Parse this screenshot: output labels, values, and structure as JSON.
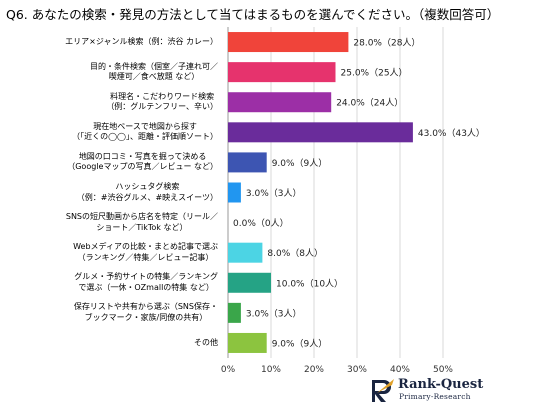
{
  "title": "Q6. あなたの検索・発見の方法として当てはまるものを選んでください。（複数回答可）",
  "chart_data": {
    "type": "bar",
    "orientation": "horizontal",
    "categories": [
      "エリア×ジャンル検索（例：渋谷 カレー）",
      "目的・条件検索（個室／子連れ可／\n喫煙可／食べ放題 など）",
      "料理名・こだわりワード検索\n（例：グルテンフリー、辛い）",
      "現在地ベースで地図から探す\n（「近くの◯◯」、距離・評価順ソート）",
      "地図の口コミ・写真を掘って決める\n（Googleマップの写真／レビュー など）",
      "ハッシュタグ検索\n（例：#渋谷グルメ、#映えスイーツ）",
      "SNSの短尺動画から店名を特定（リール／\nショート／TikTok など）",
      "Webメディアの比較・まとめ記事で選ぶ\n（ランキング／特集／レビュー記事）",
      "グルメ・予約サイトの特集／ランキング\nで選ぶ（一休・OZmallの特集 など）",
      "保存リストや共有から選ぶ（SNS保存・\nブックマーク・家族/同僚の共有）",
      "その他"
    ],
    "values": [
      28.0,
      25.0,
      24.0,
      43.0,
      9.0,
      3.0,
      0.0,
      8.0,
      10.0,
      3.0,
      9.0
    ],
    "labels": [
      "28.0%（28人）",
      "25.0%（25人）",
      "24.0%（24人）",
      "43.0%（43人）",
      "9.0%（9人）",
      "3.0%（3人）",
      "0.0%（0人）",
      "8.0%（8人）",
      "10.0%（10人）",
      "3.0%（3人）",
      "9.0%（9人）"
    ],
    "colors": [
      "#f0443a",
      "#e6336d",
      "#9c2fa6",
      "#6a2c9b",
      "#3d55b2",
      "#2196f0",
      "#1aa8c6",
      "#4cd4e4",
      "#25a385",
      "#3aa64a",
      "#8cc43f"
    ],
    "xlim": [
      0,
      50
    ],
    "xticks": [
      "0%",
      "10%",
      "20%",
      "30%",
      "40%",
      "50%"
    ],
    "grid": true
  },
  "logo": {
    "brand": "Rank-Quest",
    "sub": "Primary-Research"
  }
}
